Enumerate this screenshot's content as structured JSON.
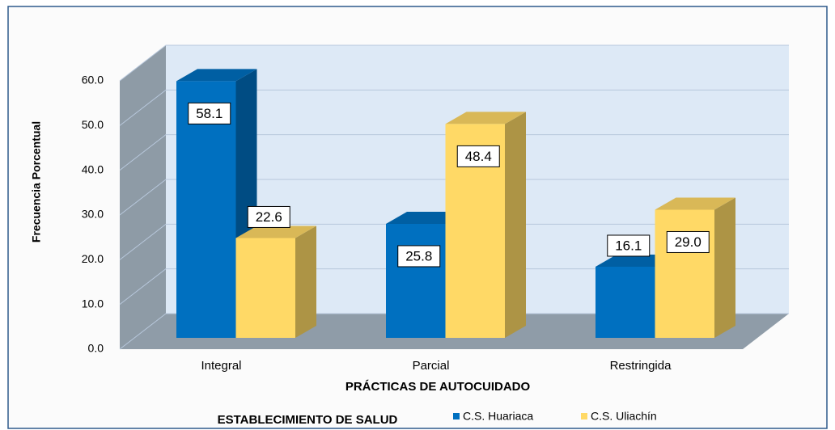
{
  "chart_data": {
    "type": "bar3d",
    "y_label": "Frecuencia Porcentual",
    "x_label": "PRÁCTICAS DE AUTOCUIDADO",
    "legend_title": "ESTABLECIMIENTO DE SALUD",
    "categories": [
      "Integral",
      "Parcial",
      "Restringida"
    ],
    "series": [
      {
        "name": "C.S. Huariaca",
        "color": "#0070c0",
        "values": [
          58.1,
          25.8,
          16.1
        ],
        "value_labels": [
          "58.1",
          "25.8",
          "16.1"
        ]
      },
      {
        "name": "C.S. Uliachín",
        "color": "#ffd966",
        "values": [
          22.6,
          48.4,
          29.0
        ],
        "value_labels": [
          "22.6",
          "48.4",
          "29.0"
        ]
      }
    ],
    "ylim": [
      0,
      60
    ],
    "yticks": [
      {
        "value": 0,
        "label": "0.0"
      },
      {
        "value": 10,
        "label": "10.0"
      },
      {
        "value": 20,
        "label": "20.0"
      },
      {
        "value": 30,
        "label": "30.0"
      },
      {
        "value": 40,
        "label": "40.0"
      },
      {
        "value": 50,
        "label": "50.0"
      },
      {
        "value": 60,
        "label": "60.0"
      }
    ],
    "grid": true,
    "legend": "bottom"
  }
}
